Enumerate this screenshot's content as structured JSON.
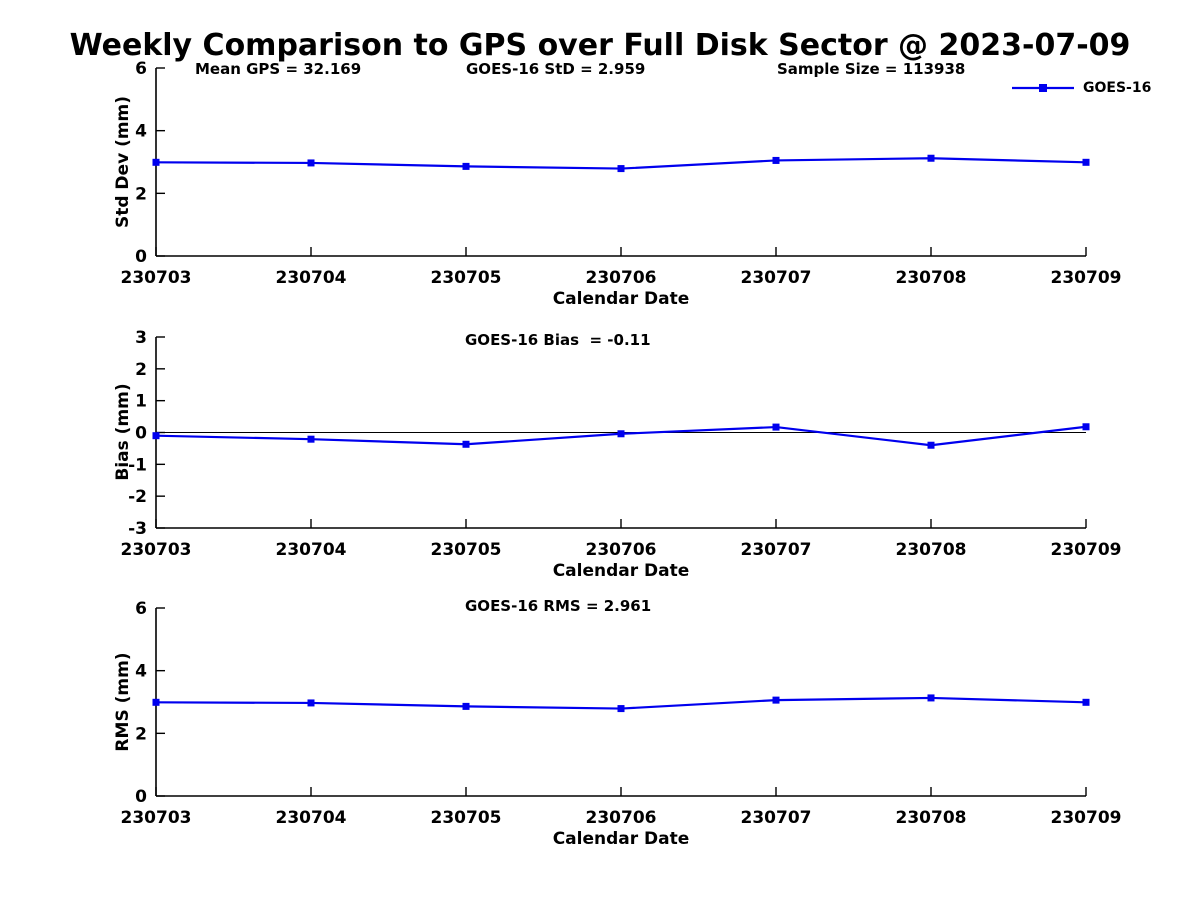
{
  "figure": {
    "title": "Weekly Comparison to GPS over Full Disk Sector @ 2023-07-09",
    "background_color": "#ffffff",
    "text_color": "#000000",
    "legend": {
      "position": "top-right",
      "series_label": "GOES-16"
    }
  },
  "chart_data": [
    {
      "type": "line",
      "title": "",
      "annotations": [
        "Mean GPS = 32.169",
        "GOES-16 StD = 2.959",
        "Sample Size = 113938"
      ],
      "categories": [
        "230703",
        "230704",
        "230705",
        "230706",
        "230707",
        "230708",
        "230709"
      ],
      "series": [
        {
          "name": "GOES-16",
          "color": "#0000EE",
          "marker": "square",
          "values": [
            2.99,
            2.97,
            2.86,
            2.79,
            3.05,
            3.12,
            2.99
          ]
        }
      ],
      "xlabel": "Calendar Date",
      "ylabel": "Std Dev (mm)",
      "ylim": [
        0,
        6
      ],
      "yticks": [
        0,
        2,
        4,
        6
      ],
      "grid": false,
      "zero_line": false,
      "legend_visible": true
    },
    {
      "type": "line",
      "title": "",
      "annotations": [
        "GOES-16 Bias  = -0.11"
      ],
      "categories": [
        "230703",
        "230704",
        "230705",
        "230706",
        "230707",
        "230708",
        "230709"
      ],
      "series": [
        {
          "name": "GOES-16",
          "color": "#0000EE",
          "marker": "square",
          "values": [
            -0.1,
            -0.21,
            -0.37,
            -0.04,
            0.17,
            -0.4,
            0.18
          ]
        }
      ],
      "xlabel": "Calendar Date",
      "ylabel": "Bias (mm)",
      "ylim": [
        -3,
        3
      ],
      "yticks": [
        -3,
        -2,
        -1,
        0,
        1,
        2,
        3
      ],
      "grid": false,
      "zero_line": true,
      "legend_visible": false
    },
    {
      "type": "line",
      "title": "",
      "annotations": [
        "GOES-16 RMS = 2.961"
      ],
      "categories": [
        "230703",
        "230704",
        "230705",
        "230706",
        "230707",
        "230708",
        "230709"
      ],
      "series": [
        {
          "name": "GOES-16",
          "color": "#0000EE",
          "marker": "square",
          "values": [
            2.99,
            2.97,
            2.86,
            2.79,
            3.06,
            3.13,
            2.99
          ]
        }
      ],
      "xlabel": "Calendar Date",
      "ylabel": "RMS (mm)",
      "ylim": [
        0,
        6
      ],
      "yticks": [
        0,
        2,
        4,
        6
      ],
      "grid": false,
      "zero_line": false,
      "legend_visible": false
    }
  ]
}
